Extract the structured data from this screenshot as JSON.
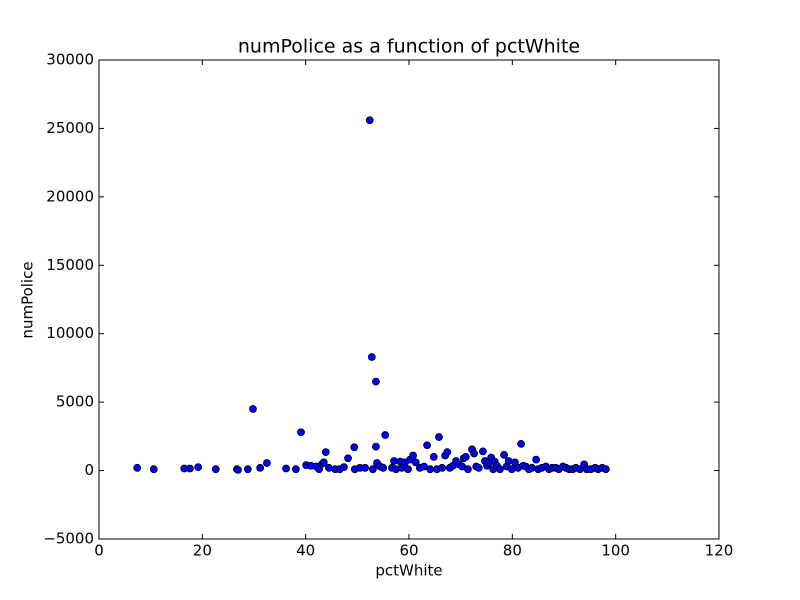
{
  "chart_data": {
    "type": "scatter",
    "title": "numPolice as a function of pctWhite",
    "x_label": "pctWhite",
    "y_label": "numPolice",
    "color": "#0000ff",
    "xlim": [
      0,
      120
    ],
    "xticks": [
      0,
      20,
      40,
      60,
      80,
      100,
      120
    ],
    "ylim": [
      -5000,
      30000
    ],
    "yticks": [
      {
        "value": -5000,
        "label": "−5000"
      },
      0,
      5000,
      10000,
      15000,
      20000,
      25000,
      30000
    ],
    "x": [
      7.4,
      10.6,
      16.5,
      17.6,
      19.2,
      22.6,
      26.7,
      26.9,
      28.8,
      29.8,
      31.2,
      32.5,
      36.2,
      38.1,
      39.1,
      40.1,
      41.0,
      42.0,
      42.6,
      43.2,
      43.5,
      43.9,
      44.5,
      45.7,
      46.6,
      47.4,
      48.2,
      49.4,
      49.5,
      50.5,
      51.5,
      52.4,
      52.8,
      53.0,
      53.6,
      53.6,
      53.8,
      54.4,
      55.0,
      55.4,
      56.7,
      57.1,
      57.5,
      58.3,
      58.6,
      59.2,
      59.8,
      60.2,
      60.8,
      61.3,
      62.1,
      62.9,
      63.5,
      64.1,
      64.8,
      65.4,
      65.8,
      66.4,
      67.0,
      67.4,
      67.9,
      68.5,
      69.1,
      69.7,
      70.3,
      70.6,
      71.0,
      71.4,
      72.2,
      72.6,
      73.0,
      73.5,
      74.3,
      74.7,
      75.1,
      75.5,
      75.9,
      76.3,
      76.6,
      77.0,
      77.6,
      78.4,
      78.9,
      79.3,
      79.9,
      80.5,
      81.1,
      81.7,
      82.1,
      82.6,
      83.2,
      83.8,
      84.6,
      85.0,
      85.7,
      86.5,
      87.1,
      87.7,
      88.4,
      89.0,
      89.8,
      90.4,
      91.0,
      91.7,
      92.3,
      93.1,
      93.9,
      94.4,
      95.2,
      96.0,
      96.6,
      97.4,
      98.1
    ],
    "values": [
      200,
      100,
      150,
      150,
      250,
      100,
      100,
      50,
      100,
      4500,
      200,
      550,
      150,
      100,
      2800,
      400,
      350,
      300,
      100,
      500,
      600,
      1350,
      200,
      100,
      100,
      250,
      900,
      1700,
      100,
      200,
      200,
      25600,
      8300,
      100,
      6500,
      1750,
      550,
      300,
      200,
      2600,
      200,
      700,
      100,
      650,
      200,
      600,
      100,
      800,
      1100,
      600,
      200,
      300,
      1850,
      100,
      1000,
      100,
      2450,
      200,
      1100,
      1350,
      200,
      350,
      700,
      450,
      300,
      900,
      1000,
      100,
      1550,
      1250,
      300,
      200,
      1400,
      700,
      350,
      600,
      950,
      100,
      650,
      350,
      100,
      1150,
      300,
      700,
      100,
      600,
      200,
      1950,
      350,
      300,
      100,
      200,
      800,
      100,
      200,
      300,
      100,
      200,
      200,
      100,
      300,
      200,
      100,
      100,
      200,
      100,
      450,
      100,
      100,
      200,
      100,
      200,
      100
    ]
  }
}
